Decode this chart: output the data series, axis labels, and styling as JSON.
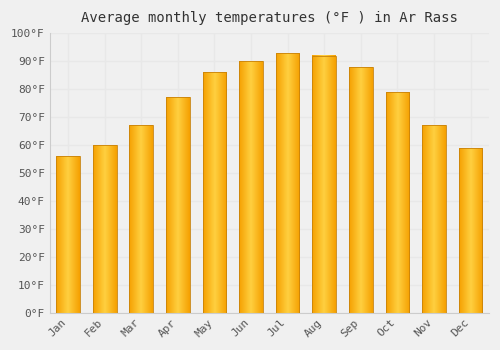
{
  "title": "Average monthly temperatures (°F ) in Ar Rass",
  "months": [
    "Jan",
    "Feb",
    "Mar",
    "Apr",
    "May",
    "Jun",
    "Jul",
    "Aug",
    "Sep",
    "Oct",
    "Nov",
    "Dec"
  ],
  "values": [
    56,
    60,
    67,
    77,
    86,
    90,
    93,
    92,
    88,
    79,
    67,
    59
  ],
  "bar_color_center": "#FFD040",
  "bar_color_edge": "#F5A000",
  "bar_edge_color": "#C8820A",
  "ylim": [
    0,
    100
  ],
  "yticks": [
    0,
    10,
    20,
    30,
    40,
    50,
    60,
    70,
    80,
    90,
    100
  ],
  "ytick_labels": [
    "0°F",
    "10°F",
    "20°F",
    "30°F",
    "40°F",
    "50°F",
    "60°F",
    "70°F",
    "80°F",
    "90°F",
    "100°F"
  ],
  "background_color": "#f0f0f0",
  "grid_color": "#e8e8e8",
  "title_fontsize": 10,
  "tick_fontsize": 8
}
